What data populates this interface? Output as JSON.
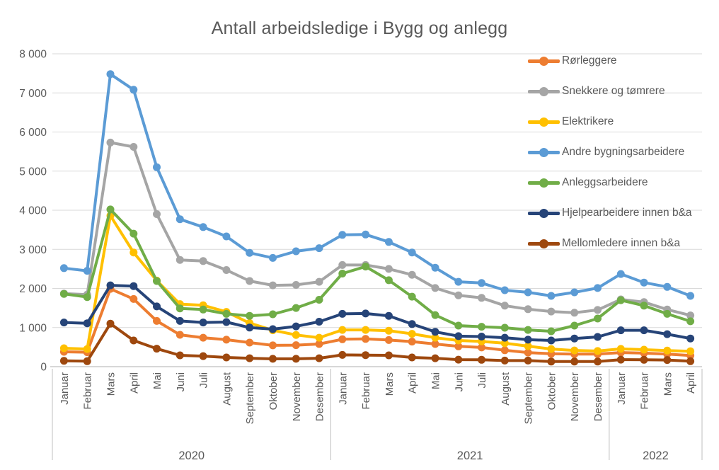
{
  "chart_data": {
    "type": "line",
    "title": "Antall arbeidsledige i Bygg og anlegg",
    "xlabel": "",
    "ylabel": "",
    "ylim": [
      0,
      8000
    ],
    "grid": true,
    "legend_position": "inside-top-right",
    "axis_colors": {
      "gridline": "#D9D9D9",
      "axis_line": "#BFBFBF",
      "label_text": "#595959"
    },
    "y_ticks": [
      {
        "value": 0,
        "label": "0"
      },
      {
        "value": 1000,
        "label": "1 000"
      },
      {
        "value": 2000,
        "label": "2 000"
      },
      {
        "value": 3000,
        "label": "3 000"
      },
      {
        "value": 4000,
        "label": "4 000"
      },
      {
        "value": 5000,
        "label": "5 000"
      },
      {
        "value": 6000,
        "label": "6 000"
      },
      {
        "value": 7000,
        "label": "7 000"
      },
      {
        "value": 8000,
        "label": "8 000"
      }
    ],
    "x_categories": [
      "Januar",
      "Februar",
      "Mars",
      "April",
      "Mai",
      "Juni",
      "Juli",
      "August",
      "September",
      "Oktober",
      "November",
      "Desember",
      "Januar",
      "Februar",
      "Mars",
      "April",
      "Mai",
      "Juni",
      "Juli",
      "August",
      "September",
      "Oktober",
      "November",
      "Desember",
      "Januar",
      "Februar",
      "Mars",
      "April"
    ],
    "year_groups": [
      {
        "label": "2020",
        "count": 12
      },
      {
        "label": "2021",
        "count": 12
      },
      {
        "label": "2022",
        "count": 4
      }
    ],
    "series": [
      {
        "name": "Rørleggere",
        "color": "#ED7D31",
        "values": [
          380,
          370,
          1990,
          1730,
          1170,
          815,
          740,
          690,
          615,
          545,
          550,
          580,
          700,
          710,
          680,
          640,
          580,
          520,
          490,
          420,
          360,
          330,
          320,
          320,
          360,
          345,
          320,
          285
        ]
      },
      {
        "name": "Snekkere og tømrere",
        "color": "#A5A5A5",
        "values": [
          1870,
          1840,
          5730,
          5620,
          3900,
          2730,
          2700,
          2470,
          2190,
          2080,
          2090,
          2170,
          2600,
          2600,
          2500,
          2350,
          2010,
          1825,
          1760,
          1560,
          1470,
          1410,
          1380,
          1450,
          1720,
          1650,
          1460,
          1310
        ]
      },
      {
        "name": "Elektrikere",
        "color": "#FFC000",
        "values": [
          470,
          450,
          3860,
          2920,
          2200,
          1600,
          1570,
          1400,
          1115,
          930,
          810,
          740,
          940,
          940,
          920,
          840,
          740,
          670,
          645,
          600,
          525,
          450,
          415,
          400,
          455,
          435,
          410,
          395
        ]
      },
      {
        "name": "Andre bygningsarbeidere",
        "color": "#5B9BD5",
        "values": [
          2520,
          2450,
          7480,
          7080,
          5100,
          3770,
          3570,
          3330,
          2910,
          2780,
          2950,
          3030,
          3370,
          3380,
          3190,
          2920,
          2530,
          2170,
          2140,
          1955,
          1900,
          1810,
          1900,
          2010,
          2370,
          2150,
          2040,
          1810
        ]
      },
      {
        "name": "Anleggsarbeidere",
        "color": "#70AD47",
        "values": [
          1860,
          1780,
          4020,
          3400,
          2190,
          1490,
          1460,
          1350,
          1300,
          1340,
          1500,
          1710,
          2380,
          2560,
          2210,
          1790,
          1320,
          1050,
          1020,
          995,
          940,
          905,
          1050,
          1230,
          1700,
          1560,
          1350,
          1160
        ]
      },
      {
        "name": "Hjelpearbeidere innen b&a",
        "color": "#264478",
        "values": [
          1130,
          1110,
          2080,
          2060,
          1540,
          1170,
          1130,
          1140,
          1000,
          960,
          1030,
          1150,
          1350,
          1360,
          1300,
          1090,
          890,
          780,
          770,
          740,
          690,
          670,
          720,
          760,
          930,
          930,
          830,
          720
        ]
      },
      {
        "name": "Mellomledere innen b&a",
        "color": "#9E480E",
        "values": [
          150,
          140,
          1100,
          670,
          460,
          290,
          270,
          235,
          215,
          200,
          200,
          215,
          300,
          295,
          290,
          235,
          215,
          180,
          175,
          155,
          155,
          130,
          130,
          130,
          180,
          175,
          170,
          140
        ]
      }
    ]
  }
}
